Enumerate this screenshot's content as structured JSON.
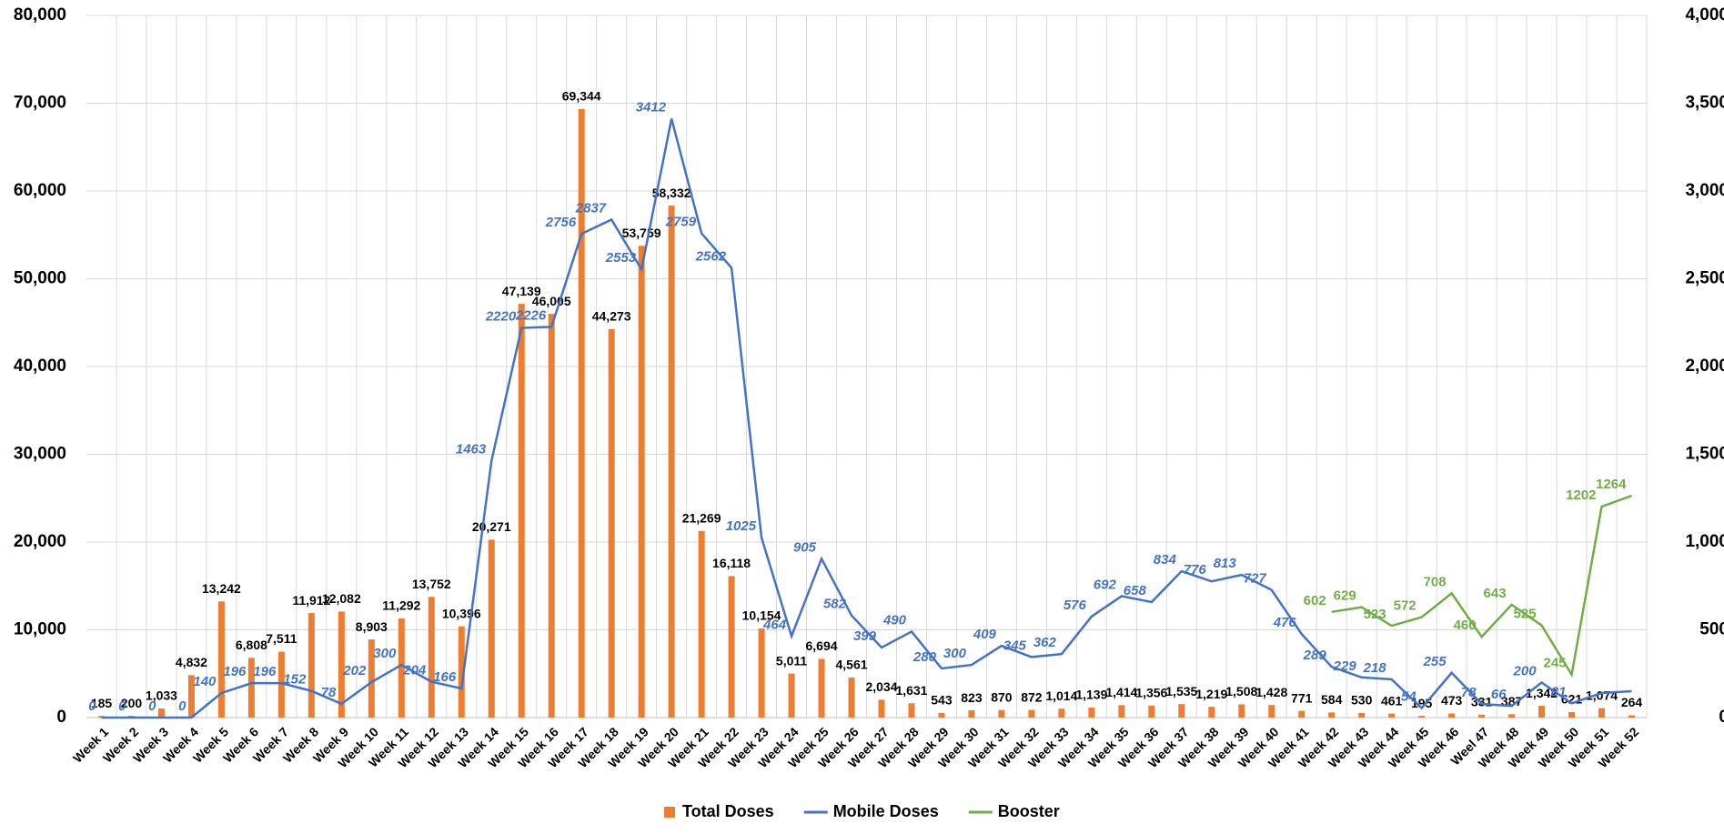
{
  "chart_data": {
    "type": "combo",
    "categories": [
      "Week 1",
      "Week 2",
      "Week 3",
      "Week 4",
      "Week 5",
      "Week 6",
      "Week 7",
      "Week 8",
      "Week 9",
      "Week 10",
      "Week 11",
      "Week 12",
      "Week 13",
      "Week 14",
      "Week 15",
      "Week 16",
      "Week 17",
      "Week 18",
      "Week 19",
      "Week 20",
      "Week 21",
      "Week 22",
      "Week 23",
      "Week 24",
      "Week 25",
      "Week 26",
      "Week 27",
      "Week 28",
      "Week 29",
      "Week 30",
      "Week 31",
      "Week 32",
      "Week 33",
      "Week 34",
      "Week 35",
      "Week 36",
      "Week 37",
      "Week 38",
      "Week 39",
      "Week 40",
      "Week 41",
      "Week 42",
      "Week 43",
      "Week 44",
      "Week 45",
      "Week 46",
      "Weel 47",
      "Week 48",
      "Week 49",
      "Week 50",
      "Week 51",
      "Week 52"
    ],
    "series": [
      {
        "name": "Total Doses",
        "type": "bar",
        "color": "#ed7d31",
        "values": [
          185,
          200,
          1033,
          4832,
          13242,
          6808,
          7511,
          11912,
          12082,
          8903,
          11292,
          13752,
          10396,
          20271,
          47139,
          46005,
          69344,
          44273,
          53759,
          58332,
          21269,
          16118,
          10154,
          5011,
          6694,
          4561,
          2034,
          1631,
          543,
          823,
          870,
          872,
          1014,
          1139,
          1414,
          1356,
          1535,
          1219,
          1508,
          1428,
          771,
          584,
          530,
          461,
          195,
          473,
          331,
          387,
          1342,
          621,
          1074,
          264
        ],
        "value_labels": [
          "185",
          "200",
          "1,033",
          "4,832",
          "13,242",
          "6,808",
          "7,511",
          "11,912",
          "12,082",
          "8,903",
          "11,292",
          "13,752",
          "10,396",
          "20,271",
          "47,139",
          "46,005",
          "69,344",
          "44,273",
          "53,759",
          "58,332",
          "21,269",
          "16,118",
          "10,154",
          "5,011",
          "6,694",
          "4,561",
          "2,034",
          "1,631",
          "543",
          "823",
          "870",
          "872",
          "1,014",
          "1,139",
          "1,414",
          "1,356",
          "1,535",
          "1,219",
          "1,508",
          "1,428",
          "771",
          "584",
          "530",
          "461",
          "195",
          "473",
          "331",
          "387",
          "1,342",
          "621",
          "1,074",
          "264"
        ]
      },
      {
        "name": "Mobile Doses",
        "type": "line",
        "axis": "y2",
        "color": "#4472c4",
        "values": [
          0,
          0,
          0,
          0,
          140,
          196,
          196,
          152,
          78,
          202,
          300,
          204,
          166,
          1463,
          2220,
          2226,
          2756,
          2837,
          2553,
          3412,
          2759,
          2562,
          1025,
          464,
          905,
          582,
          399,
          490,
          280,
          300,
          409,
          345,
          362,
          576,
          692,
          658,
          834,
          776,
          813,
          727,
          476,
          289,
          229,
          218,
          54,
          255,
          78,
          66,
          200,
          81,
          140,
          150
        ],
        "value_labels": [
          "0",
          "0",
          "0",
          "0",
          "140",
          "196",
          "196",
          "152",
          "78",
          "202",
          "300",
          "204",
          "166",
          "1463",
          "2220",
          "2226",
          "2756",
          "2837",
          "2553",
          "3412",
          "2759",
          "2562",
          "1025",
          "464",
          "905",
          "582",
          "399",
          "490",
          "280",
          "300",
          "409",
          "345",
          "362",
          "576",
          "692",
          "658",
          "834",
          "776",
          "813",
          "727",
          "476",
          "289",
          "229",
          "218",
          "54",
          "255",
          "78",
          "66",
          "200",
          "81",
          null,
          null
        ]
      },
      {
        "name": "Booster",
        "type": "line",
        "axis": "y2",
        "color": "#70ad47",
        "values": [
          null,
          null,
          null,
          null,
          null,
          null,
          null,
          null,
          null,
          null,
          null,
          null,
          null,
          null,
          null,
          null,
          null,
          null,
          null,
          null,
          null,
          null,
          null,
          null,
          null,
          null,
          null,
          null,
          null,
          null,
          null,
          null,
          null,
          null,
          null,
          null,
          null,
          null,
          null,
          null,
          null,
          602,
          629,
          523,
          572,
          708,
          460,
          643,
          525,
          245,
          1202,
          1264
        ]
      }
    ],
    "ylim": [
      0,
      80000
    ],
    "yticks": [
      0,
      {
        "value": 10000,
        "label": "10,000"
      },
      {
        "value": 20000,
        "label": "20,000"
      },
      {
        "value": 30000,
        "label": "30,000"
      },
      {
        "value": 40000,
        "label": "40,000"
      },
      {
        "value": 50000,
        "label": "50,000"
      },
      {
        "value": 60000,
        "label": "60,000"
      },
      {
        "value": 70000,
        "label": "70,000"
      },
      {
        "value": 80000,
        "label": "80,000"
      }
    ],
    "y2lim": [
      0,
      4000
    ],
    "y2ticks": [
      0,
      500,
      {
        "value": 1000,
        "label": "1,000"
      },
      {
        "value": 1500,
        "label": "1,500"
      },
      {
        "value": 2000,
        "label": "2,000"
      },
      {
        "value": 2500,
        "label": "2,500"
      },
      {
        "value": 3000,
        "label": "3,000"
      },
      {
        "value": 3500,
        "label": "3,500"
      },
      {
        "value": 4000,
        "label": "4,000"
      }
    ],
    "grid": true,
    "legend": "bottom"
  }
}
